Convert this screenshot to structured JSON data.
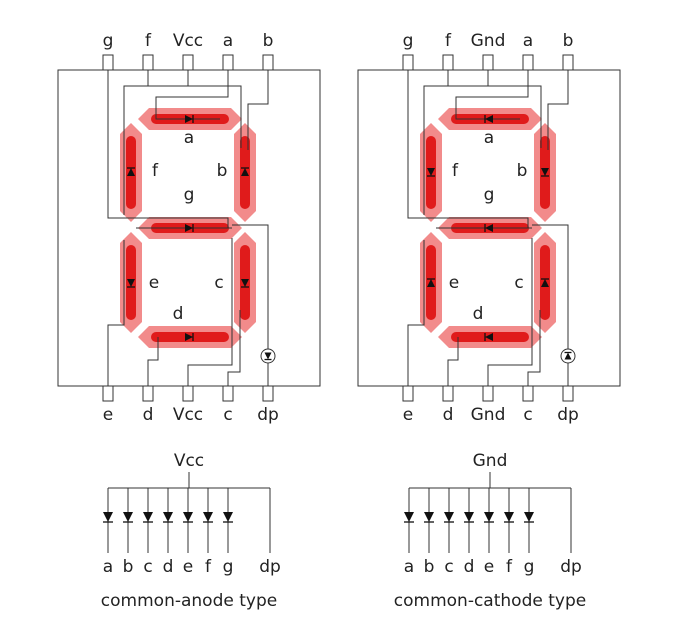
{
  "colors": {
    "segment_outer": "#f28b8b",
    "segment_inner": "#e01b1b",
    "wire": "#333333",
    "diode": "#111111"
  },
  "displays": [
    {
      "top_pins": [
        "g",
        "f",
        "Vcc",
        "a",
        "b"
      ],
      "bottom_pins": [
        "e",
        "d",
        "Vcc",
        "c",
        "dp"
      ],
      "segment_labels": {
        "a": "a",
        "b": "b",
        "c": "c",
        "d": "d",
        "e": "e",
        "f": "f",
        "g": "g"
      },
      "diode_direction": "anode"
    },
    {
      "top_pins": [
        "g",
        "f",
        "Gnd",
        "a",
        "b"
      ],
      "bottom_pins": [
        "e",
        "d",
        "Gnd",
        "c",
        "dp"
      ],
      "segment_labels": {
        "a": "a",
        "b": "b",
        "c": "c",
        "d": "d",
        "e": "e",
        "f": "f",
        "g": "g"
      },
      "diode_direction": "cathode"
    }
  ],
  "schematics": [
    {
      "common_label": "Vcc",
      "pins": [
        "a",
        "b",
        "c",
        "d",
        "e",
        "f",
        "g",
        "dp"
      ],
      "type_label": "common-anode type",
      "diode_direction": "anode"
    },
    {
      "common_label": "Gnd",
      "pins": [
        "a",
        "b",
        "c",
        "d",
        "e",
        "f",
        "g",
        "dp"
      ],
      "type_label": "common-cathode type",
      "diode_direction": "cathode"
    }
  ]
}
